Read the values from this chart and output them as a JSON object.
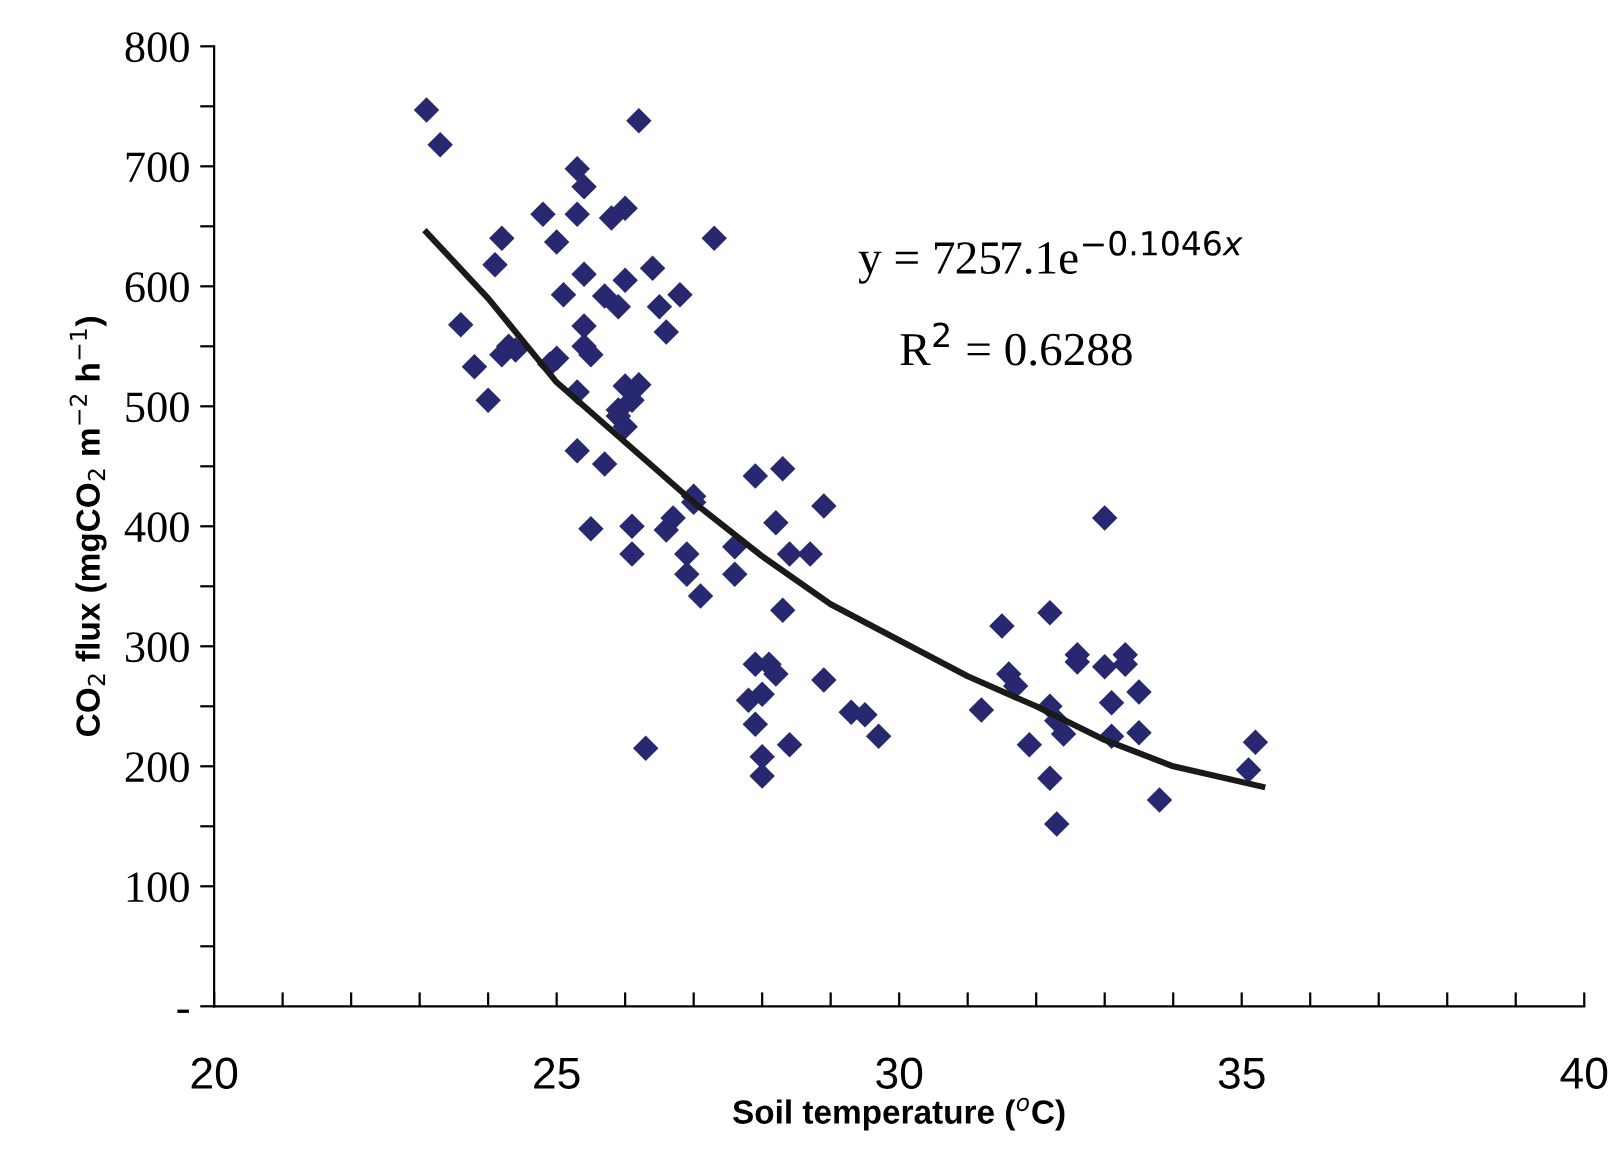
{
  "chart_data": {
    "type": "scatter",
    "xlabel": "Soil temperature ($^{o}$C)",
    "ylabel": "CO$_{2}$ flux (mgCO$_{2}$ m$^{−2}$ h$^{−1}$)",
    "annotations": [
      "y = 7257.1e$^{−0.1046x}$",
      "R$^{2}$ = 0.6288"
    ],
    "xlim": [
      20,
      40
    ],
    "xticks": [
      20,
      {
        "value": 21,
        "label": null
      },
      {
        "value": 22,
        "label": null
      },
      {
        "value": 23,
        "label": null
      },
      {
        "value": 24,
        "label": null
      },
      25,
      {
        "value": 26,
        "label": null
      },
      {
        "value": 27,
        "label": null
      },
      {
        "value": 28,
        "label": null
      },
      {
        "value": 29,
        "label": null
      },
      30,
      {
        "value": 31,
        "label": null
      },
      {
        "value": 32,
        "label": null
      },
      {
        "value": 33,
        "label": null
      },
      {
        "value": 34,
        "label": null
      },
      35,
      {
        "value": 36,
        "label": null
      },
      {
        "value": 37,
        "label": null
      },
      {
        "value": 38,
        "label": null
      },
      {
        "value": 39,
        "label": null
      },
      40
    ],
    "ylim": [
      0,
      800
    ],
    "yticks": [
      {
        "value": 0,
        "label": "-"
      },
      {
        "value": 50,
        "label": null
      },
      100,
      {
        "value": 150,
        "label": null
      },
      200,
      {
        "value": 250,
        "label": null
      },
      300,
      {
        "value": 350,
        "label": null
      },
      400,
      {
        "value": 450,
        "label": null
      },
      500,
      {
        "value": 550,
        "label": null
      },
      600,
      {
        "value": 650,
        "label": null
      },
      700,
      {
        "value": 750,
        "label": null
      },
      800
    ],
    "grid": false,
    "legend": false,
    "marker": "diamond",
    "series": [
      {
        "color": "#27286f",
        "x": [
          23.1,
          23.3,
          26.2,
          25.3,
          25.4,
          24.8,
          25.3,
          25.8,
          26.0,
          27.3,
          24.2,
          25.0,
          24.1,
          25.4,
          26.0,
          26.4,
          25.1,
          25.7,
          25.9,
          26.8,
          26.5,
          26.6,
          23.6,
          25.4,
          25.4,
          25.5,
          23.8,
          24.3,
          24.2,
          24.4,
          25.0,
          24.9,
          24.0,
          26.0,
          26.2,
          26.1,
          25.9,
          25.3,
          25.9,
          26.0,
          25.3,
          25.7,
          27.0,
          27.0,
          25.5,
          26.1,
          26.6,
          26.7,
          26.1,
          26.9,
          26.9,
          27.6,
          27.6,
          26.3,
          27.1,
          27.9,
          28.3,
          28.9,
          28.2,
          28.4,
          28.7,
          28.3,
          27.9,
          28.1,
          28.2,
          28.9,
          27.8,
          28.0,
          27.9,
          28.4,
          28.0,
          28.0,
          29.3,
          29.5,
          29.7,
          31.2,
          31.5,
          32.2,
          31.6,
          31.7,
          32.6,
          32.6,
          33.0,
          33.0,
          33.3,
          33.3,
          33.5,
          33.1,
          32.2,
          32.3,
          32.4,
          33.1,
          33.5,
          31.9,
          32.2,
          32.3,
          33.8,
          35.1,
          35.2
        ],
        "values": [
          747,
          718,
          738,
          698,
          683,
          660,
          660,
          657,
          665,
          640,
          640,
          637,
          618,
          610,
          605,
          615,
          593,
          592,
          583,
          593,
          583,
          562,
          568,
          567,
          550,
          543,
          533,
          550,
          543,
          547,
          540,
          535,
          505,
          517,
          518,
          505,
          497,
          512,
          492,
          483,
          463,
          452,
          425,
          420,
          398,
          400,
          397,
          407,
          377,
          377,
          360,
          383,
          360,
          215,
          342,
          442,
          448,
          417,
          403,
          377,
          377,
          330,
          285,
          285,
          277,
          272,
          255,
          260,
          235,
          218,
          208,
          192,
          245,
          243,
          225,
          247,
          317,
          328,
          277,
          267,
          293,
          287,
          407,
          283,
          293,
          285,
          262,
          253,
          250,
          238,
          227,
          225,
          228,
          218,
          190,
          152,
          172,
          197,
          220
        ]
      },
      {
        "type": "line",
        "color": "#1a1a1a",
        "marker": "none",
        "line_style": "solid",
        "x": [
          23.1,
          24,
          25,
          26,
          27,
          28,
          29,
          30,
          31,
          32,
          33,
          34,
          35.3
        ],
        "values": [
          645,
          590,
          520,
          470,
          420,
          375,
          335,
          305,
          275,
          250,
          222,
          200,
          183
        ]
      }
    ]
  }
}
